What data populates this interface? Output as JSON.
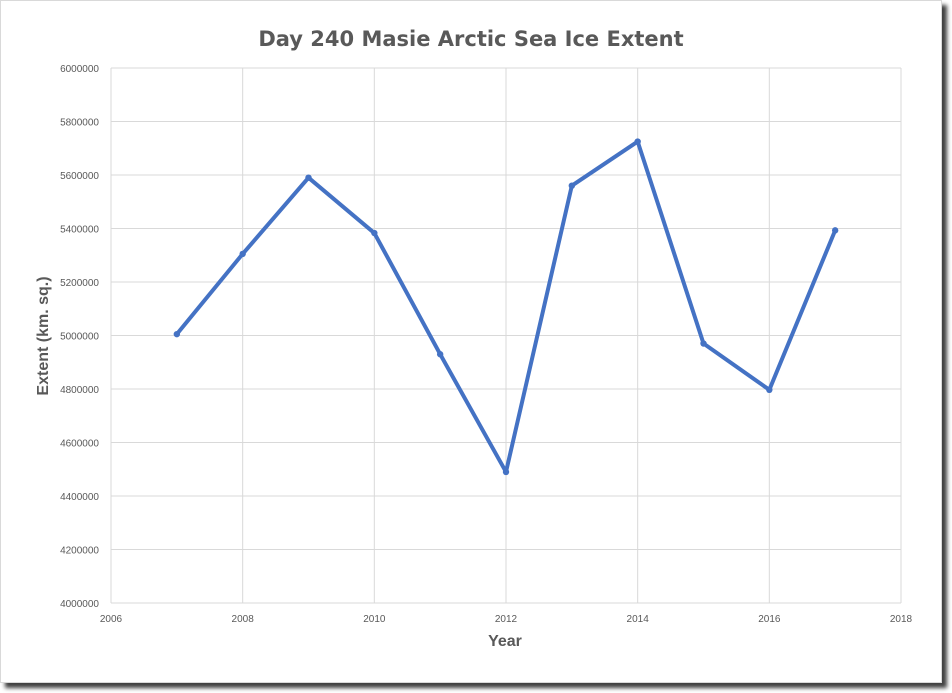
{
  "chart_data": {
    "type": "scatter",
    "mode": "lines+markers",
    "title": "Day 240 Masie Arctic Sea Ice Extent",
    "xlabel": "Year",
    "ylabel": "Extent (km. sq.)",
    "xlim": [
      2006,
      2018
    ],
    "ylim": [
      4000000,
      6000000
    ],
    "x_ticks": [
      "2006",
      "2008",
      "2010",
      "2012",
      "2014",
      "2016",
      "2018"
    ],
    "y_ticks": [
      "4000000",
      "4200000",
      "4400000",
      "4600000",
      "4800000",
      "5000000",
      "5200000",
      "5400000",
      "5600000",
      "5800000",
      "6000000"
    ],
    "grid": true,
    "legend": "none",
    "color": "#4472c4",
    "series": [
      {
        "x": [
          2007,
          2008,
          2009,
          2010,
          2011,
          2012,
          2013,
          2014,
          2015,
          2016,
          2017
        ],
        "y": [
          5005000,
          5305000,
          5590000,
          5383000,
          4930000,
          4490000,
          5560000,
          5725000,
          4970000,
          4797000,
          5393000
        ]
      }
    ]
  }
}
